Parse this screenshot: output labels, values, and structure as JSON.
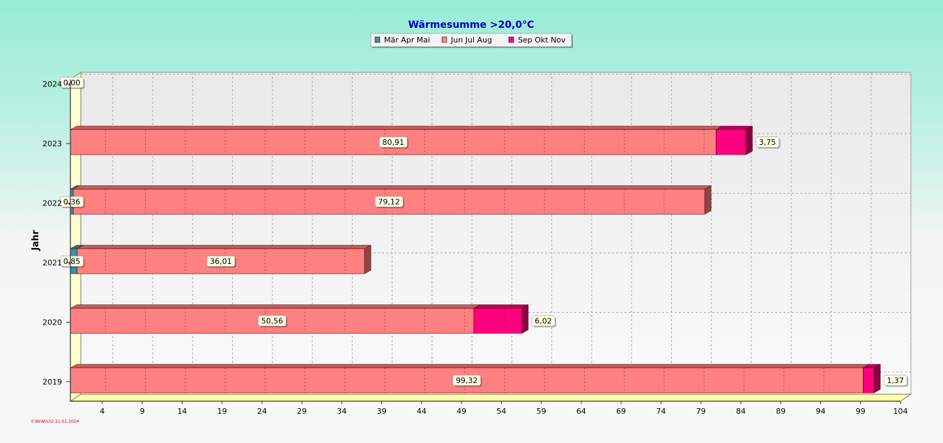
{
  "chart_data": {
    "type": "bar",
    "orientation": "horizontal",
    "stacked": true,
    "title": "Wärmesumme  >20,0°C",
    "ylabel": "Jahr",
    "xlabel": "",
    "categories": [
      "2019",
      "2020",
      "2021",
      "2022",
      "2023",
      "2024"
    ],
    "series": [
      {
        "name": "Mär Apr Mai",
        "color": "#3a8eaa",
        "values": [
          0,
          0,
          0.85,
          0.36,
          0,
          0
        ]
      },
      {
        "name": "Jun Jul Aug",
        "color": "#ff8080",
        "values": [
          99.32,
          50.56,
          36.01,
          79.12,
          80.91,
          0
        ]
      },
      {
        "name": "Sep Okt Nov",
        "color": "#ff0080",
        "values": [
          1.37,
          6.02,
          0,
          0,
          3.75,
          0
        ]
      }
    ],
    "data_labels": [
      {
        "category": "2019",
        "series": "Jun Jul Aug",
        "text": "99,32"
      },
      {
        "category": "2019",
        "series": "Sep Okt Nov",
        "text": "1,37"
      },
      {
        "category": "2020",
        "series": "Jun Jul Aug",
        "text": "50,56"
      },
      {
        "category": "2020",
        "series": "Sep Okt Nov",
        "text": "6,02"
      },
      {
        "category": "2021",
        "series": "Mär Apr Mai",
        "text": "0,85"
      },
      {
        "category": "2021",
        "series": "Jun Jul Aug",
        "text": "36,01"
      },
      {
        "category": "2022",
        "series": "Mär Apr Mai",
        "text": "0,36"
      },
      {
        "category": "2022",
        "series": "Jun Jul Aug",
        "text": "79,12"
      },
      {
        "category": "2023",
        "series": "Jun Jul Aug",
        "text": "80,91"
      },
      {
        "category": "2023",
        "series": "Sep Okt Nov",
        "text": "3,75"
      },
      {
        "category": "2024",
        "series": "Mär Apr Mai",
        "text": "0,00"
      }
    ],
    "xlim": [
      0,
      104
    ],
    "xticks": [
      4,
      9,
      14,
      19,
      24,
      29,
      34,
      39,
      44,
      49,
      54,
      59,
      64,
      69,
      74,
      79,
      84,
      89,
      94,
      99,
      104
    ],
    "grid": true,
    "legend_position": "top-center",
    "footer": "©WrWin32  21.01.2024"
  }
}
